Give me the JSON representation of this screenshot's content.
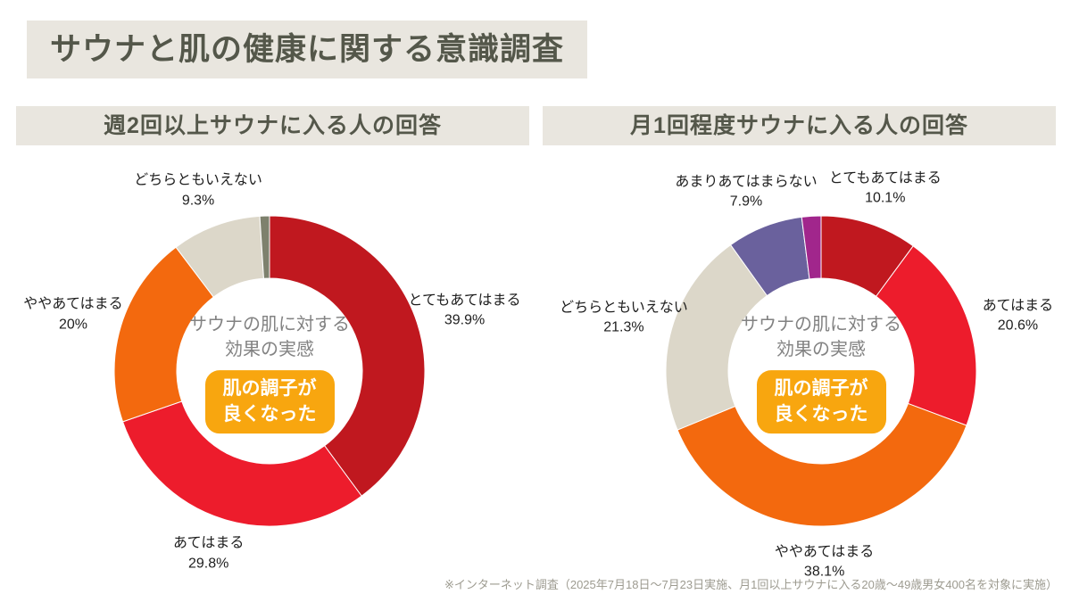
{
  "page": {
    "title": "サウナと肌の健康に関する意識調査",
    "source_note": "※インターネット調査（2025年7月18日〜7月23日実施、月1回以上サウナに入る20歳〜49歳男女400名を対象に実施）"
  },
  "colors": {
    "banner_bg": "#e9e6df",
    "banner_text": "#54574a",
    "slice_very_true": "#c0181f",
    "slice_true": "#ed1c2c",
    "slice_somewhat_true": "#f3690e",
    "slice_neutral": "#dcd7c9",
    "slice_small_left": "#7e816d",
    "slice_not_much": "#6a619d",
    "slice_small_right": "#a1268c",
    "badge_bg": "#f8a60f",
    "badge_text": "#ffffff"
  },
  "chart_data": [
    {
      "type": "pie",
      "subtype": "donut",
      "title": "週2回以上サウナに入る人の回答",
      "center_label": [
        "サウナの肌に対する",
        "効果の実感"
      ],
      "center_badge": [
        "肌の調子が",
        "良くなった"
      ],
      "legend": "none",
      "labels_position": "outside",
      "segments": [
        {
          "label": "とてもあてはまる",
          "value": 39.9,
          "display": "39.9%",
          "color": "#c0181f",
          "labeled": true
        },
        {
          "label": "あてはまる",
          "value": 29.8,
          "display": "29.8%",
          "color": "#ed1c2c",
          "labeled": true
        },
        {
          "label": "ややあてはまる",
          "value": 20,
          "display": "20%",
          "color": "#f3690e",
          "labeled": true
        },
        {
          "label": "どちらともいえない",
          "value": 9.3,
          "display": "9.3%",
          "color": "#dcd7c9",
          "labeled": true
        },
        {
          "label": "",
          "value": 1.0,
          "display": "",
          "color": "#7e816d",
          "labeled": false
        }
      ]
    },
    {
      "type": "pie",
      "subtype": "donut",
      "title": "月1回程度サウナに入る人の回答",
      "center_label": [
        "サウナの肌に対する",
        "効果の実感"
      ],
      "center_badge": [
        "肌の調子が",
        "良くなった"
      ],
      "legend": "none",
      "labels_position": "outside",
      "segments": [
        {
          "label": "とてもあてはまる",
          "value": 10.1,
          "display": "10.1%",
          "color": "#c0181f",
          "labeled": true
        },
        {
          "label": "あてはまる",
          "value": 20.6,
          "display": "20.6%",
          "color": "#ed1c2c",
          "labeled": true
        },
        {
          "label": "ややあてはまる",
          "value": 38.1,
          "display": "38.1%",
          "color": "#f3690e",
          "labeled": true
        },
        {
          "label": "どちらともいえない",
          "value": 21.3,
          "display": "21.3%",
          "color": "#dcd7c9",
          "labeled": true
        },
        {
          "label": "あまりあてはまらない",
          "value": 7.9,
          "display": "7.9%",
          "color": "#6a619d",
          "labeled": true
        },
        {
          "label": "",
          "value": 2.0,
          "display": "",
          "color": "#a1268c",
          "labeled": false
        }
      ]
    }
  ]
}
